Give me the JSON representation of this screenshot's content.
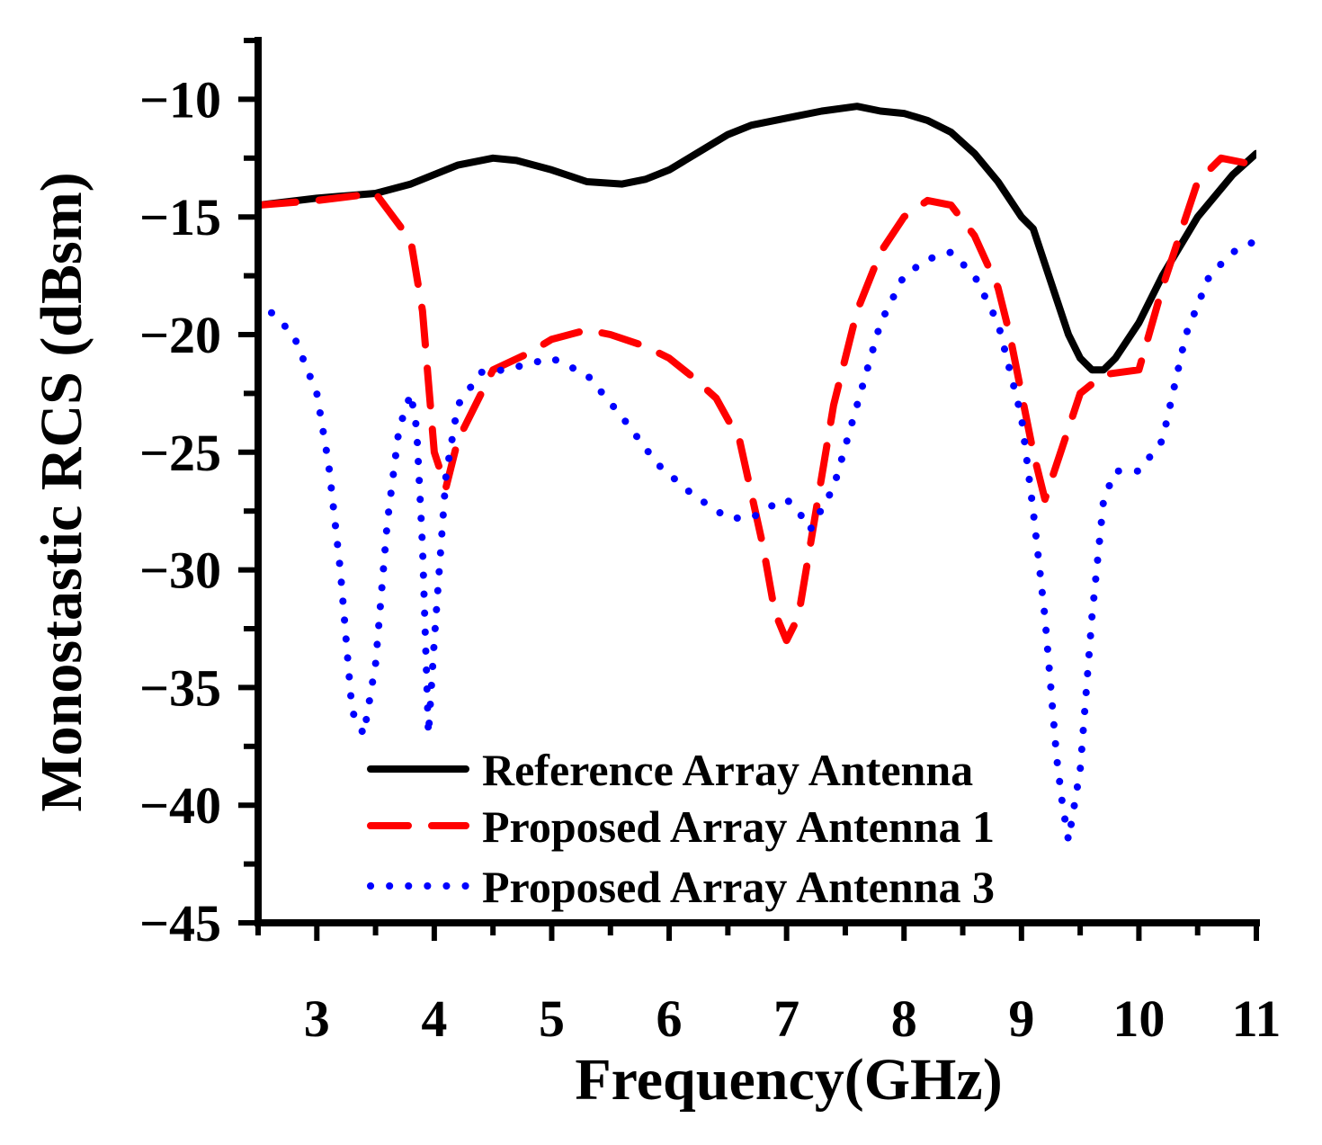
{
  "chart_data": {
    "type": "line",
    "title": "",
    "xlabel": "Frequency(GHz)",
    "ylabel": "Monostastic RCS (dBsm)",
    "xlim": [
      2.5,
      11
    ],
    "ylim": [
      -45,
      -7.5
    ],
    "xticks": [
      3,
      4,
      5,
      6,
      7,
      8,
      9,
      10,
      11
    ],
    "yticks": [
      -10,
      -15,
      -20,
      -25,
      -30,
      -35,
      -40,
      -45
    ],
    "xtick_labels": [
      "3",
      "4",
      "5",
      "6",
      "7",
      "8",
      "9",
      "10",
      "11"
    ],
    "ytick_labels": [
      "−10",
      "−15",
      "−20",
      "−25",
      "−30",
      "−35",
      "−40",
      "−45"
    ],
    "grid": false,
    "legend_position": "bottom-center",
    "series": [
      {
        "name": "Reference Array Antenna",
        "color": "#000000",
        "style": "solid",
        "x": [
          2.5,
          3.0,
          3.5,
          3.8,
          4.0,
          4.2,
          4.5,
          4.7,
          5.0,
          5.3,
          5.6,
          5.8,
          6.0,
          6.2,
          6.5,
          6.7,
          7.0,
          7.3,
          7.6,
          7.8,
          8.0,
          8.2,
          8.4,
          8.6,
          8.8,
          9.0,
          9.1,
          9.2,
          9.3,
          9.4,
          9.5,
          9.6,
          9.7,
          9.8,
          10.0,
          10.2,
          10.5,
          10.8,
          11.0
        ],
        "y": [
          -14.5,
          -14.2,
          -14.0,
          -13.6,
          -13.2,
          -12.8,
          -12.5,
          -12.6,
          -13.0,
          -13.5,
          -13.6,
          -13.4,
          -13.0,
          -12.4,
          -11.5,
          -11.1,
          -10.8,
          -10.5,
          -10.3,
          -10.5,
          -10.6,
          -10.9,
          -11.4,
          -12.3,
          -13.5,
          -15.0,
          -15.5,
          -17.0,
          -18.5,
          -20.0,
          -21.0,
          -21.5,
          -21.5,
          -21.0,
          -19.5,
          -17.5,
          -15.0,
          -13.2,
          -12.3
        ]
      },
      {
        "name": "Proposed Array Antenna 1",
        "color": "#ff0000",
        "style": "dashed",
        "x": [
          2.5,
          3.0,
          3.5,
          3.8,
          3.9,
          4.0,
          4.1,
          4.2,
          4.5,
          4.8,
          5.0,
          5.3,
          5.5,
          5.8,
          6.0,
          6.2,
          6.4,
          6.6,
          6.8,
          6.9,
          7.0,
          7.1,
          7.2,
          7.4,
          7.6,
          7.8,
          8.0,
          8.2,
          8.4,
          8.6,
          8.8,
          8.9,
          9.0,
          9.1,
          9.2,
          9.3,
          9.5,
          9.7,
          10.0,
          10.2,
          10.5,
          10.7,
          11.0
        ],
        "y": [
          -14.5,
          -14.3,
          -14.0,
          -16.0,
          -19.0,
          -25.0,
          -26.5,
          -24.5,
          -21.5,
          -20.8,
          -20.2,
          -19.8,
          -20.0,
          -20.5,
          -21.0,
          -21.8,
          -22.7,
          -24.5,
          -29.0,
          -31.8,
          -33.0,
          -32.0,
          -29.0,
          -23.0,
          -19.0,
          -16.5,
          -15.0,
          -14.3,
          -14.5,
          -15.8,
          -18.0,
          -20.0,
          -22.5,
          -25.0,
          -27.0,
          -25.5,
          -22.5,
          -21.7,
          -21.5,
          -18.0,
          -13.5,
          -12.5,
          -12.8
        ]
      },
      {
        "name": "Proposed Array Antenna 3",
        "color": "#0000ff",
        "style": "dotted",
        "x": [
          2.5,
          2.8,
          3.0,
          3.1,
          3.2,
          3.3,
          3.4,
          3.5,
          3.6,
          3.7,
          3.8,
          3.85,
          3.9,
          3.95,
          4.0,
          4.1,
          4.2,
          4.4,
          4.6,
          5.0,
          5.3,
          5.6,
          5.9,
          6.2,
          6.5,
          6.7,
          6.9,
          7.0,
          7.1,
          7.2,
          7.4,
          7.6,
          7.8,
          8.0,
          8.2,
          8.4,
          8.6,
          8.8,
          9.0,
          9.1,
          9.2,
          9.3,
          9.35,
          9.4,
          9.5,
          9.6,
          9.7,
          9.8,
          10.0,
          10.2,
          10.4,
          10.6,
          10.8,
          11.0
        ],
        "y": [
          -18.5,
          -20.0,
          -22.5,
          -25.5,
          -30.0,
          -36.0,
          -37.0,
          -34.0,
          -28.0,
          -24.0,
          -22.5,
          -24.0,
          -29.0,
          -37.0,
          -33.0,
          -26.0,
          -23.0,
          -21.6,
          -21.5,
          -21.0,
          -21.7,
          -23.5,
          -25.5,
          -26.8,
          -27.8,
          -27.8,
          -27.2,
          -27.0,
          -27.5,
          -28.3,
          -26.5,
          -23.0,
          -19.5,
          -17.5,
          -16.8,
          -16.5,
          -17.5,
          -19.5,
          -23.5,
          -27.5,
          -32.0,
          -38.0,
          -40.0,
          -41.5,
          -38.5,
          -32.0,
          -27.0,
          -25.8,
          -25.8,
          -24.5,
          -20.0,
          -17.5,
          -16.5,
          -16.0
        ]
      }
    ]
  }
}
